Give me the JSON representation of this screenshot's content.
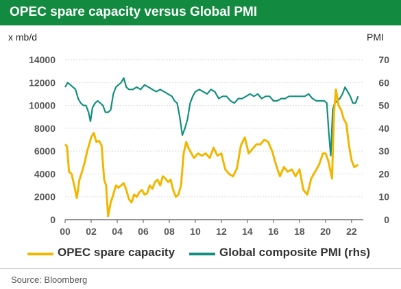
{
  "title": "OPEC spare capacity versus Global PMI",
  "left_unit": "x mb/d",
  "right_unit": "PMI",
  "source": "Source: Bloomberg",
  "colors": {
    "title_bg": "#128a3f",
    "opec": "#f2b600",
    "pmi": "#128f7e"
  },
  "chart_data": {
    "type": "line",
    "x_tick_labels": [
      "00",
      "02",
      "04",
      "06",
      "08",
      "10",
      "12",
      "14",
      "16",
      "18",
      "20",
      "22"
    ],
    "x_ticks": [
      2000,
      2002,
      2004,
      2006,
      2008,
      2010,
      2012,
      2014,
      2016,
      2018,
      2020,
      2022
    ],
    "xlim": [
      2000,
      2022.9
    ],
    "y_left": {
      "lim": [
        0,
        14000
      ],
      "ticks": [
        0,
        2000,
        4000,
        6000,
        8000,
        10000,
        12000,
        14000
      ]
    },
    "y_right": {
      "lim": [
        0,
        70
      ],
      "ticks": [
        0,
        10,
        20,
        30,
        40,
        50,
        60,
        70
      ]
    },
    "grid": "horizontal",
    "legend_position": "bottom",
    "series": [
      {
        "name": "OPEC spare capacity",
        "axis": "left",
        "x": [
          2000,
          2000.15,
          2000.3,
          2000.5,
          2000.7,
          2000.9,
          2001.1,
          2001.3,
          2001.5,
          2001.7,
          2001.9,
          2002.0,
          2002.2,
          2002.4,
          2002.6,
          2002.8,
          2003.0,
          2003.15,
          2003.3,
          2003.5,
          2003.7,
          2003.9,
          2004.1,
          2004.3,
          2004.5,
          2004.7,
          2004.9,
          2005.1,
          2005.3,
          2005.5,
          2005.7,
          2005.9,
          2006.1,
          2006.3,
          2006.5,
          2006.7,
          2006.9,
          2007.1,
          2007.3,
          2007.5,
          2007.7,
          2007.9,
          2008.1,
          2008.3,
          2008.5,
          2008.7,
          2008.9,
          2009.1,
          2009.3,
          2009.5,
          2009.7,
          2009.9,
          2010.2,
          2010.5,
          2010.8,
          2011.1,
          2011.4,
          2011.7,
          2012.0,
          2012.3,
          2012.6,
          2012.9,
          2013.2,
          2013.5,
          2013.8,
          2014.1,
          2014.4,
          2014.7,
          2015.0,
          2015.3,
          2015.6,
          2015.9,
          2016.2,
          2016.5,
          2016.8,
          2017.1,
          2017.4,
          2017.7,
          2018.0,
          2018.3,
          2018.6,
          2018.9,
          2019.2,
          2019.5,
          2019.8,
          2020.0,
          2020.2,
          2020.35,
          2020.5,
          2020.65,
          2020.8,
          2021.0,
          2021.2,
          2021.4,
          2021.6,
          2021.8,
          2022.0,
          2022.2,
          2022.5
        ],
        "y": [
          6600,
          6400,
          4200,
          4000,
          3000,
          1900,
          3500,
          4200,
          5000,
          6000,
          6800,
          7200,
          7600,
          6800,
          6900,
          6500,
          3500,
          3000,
          300,
          1500,
          2200,
          3000,
          2800,
          3000,
          3200,
          2600,
          1800,
          1500,
          2200,
          2000,
          2400,
          2600,
          2200,
          2300,
          3000,
          2700,
          3300,
          3500,
          3000,
          3800,
          3600,
          3300,
          3500,
          2600,
          2000,
          2200,
          3000,
          5800,
          6800,
          6200,
          5800,
          5400,
          5800,
          5600,
          5800,
          5400,
          6300,
          5600,
          5800,
          4400,
          4000,
          3800,
          4500,
          6500,
          7200,
          5800,
          6200,
          6600,
          6600,
          7000,
          6800,
          6000,
          4800,
          3800,
          4600,
          4200,
          4400,
          3800,
          4400,
          2600,
          2200,
          3600,
          4200,
          4800,
          5800,
          5800,
          5200,
          4400,
          3600,
          9400,
          11400,
          10000,
          9600,
          8800,
          8400,
          6500,
          5200,
          4600,
          4800
        ]
      },
      {
        "name": "Global composite PMI (rhs)",
        "axis": "right",
        "x": [
          2000,
          2000.2,
          2000.4,
          2000.6,
          2000.8,
          2001.0,
          2001.2,
          2001.4,
          2001.6,
          2001.8,
          2001.95,
          2002.1,
          2002.3,
          2002.5,
          2002.7,
          2002.9,
          2003.1,
          2003.3,
          2003.5,
          2003.7,
          2003.9,
          2004.1,
          2004.3,
          2004.5,
          2004.7,
          2004.9,
          2005.2,
          2005.5,
          2005.8,
          2006.1,
          2006.4,
          2006.7,
          2007.0,
          2007.3,
          2007.6,
          2007.9,
          2008.2,
          2008.4,
          2008.6,
          2008.8,
          2009.0,
          2009.2,
          2009.4,
          2009.6,
          2009.8,
          2010.0,
          2010.3,
          2010.6,
          2010.9,
          2011.2,
          2011.5,
          2011.8,
          2012.1,
          2012.4,
          2012.7,
          2013.0,
          2013.3,
          2013.6,
          2013.9,
          2014.2,
          2014.5,
          2014.8,
          2015.1,
          2015.4,
          2015.7,
          2016.0,
          2016.3,
          2016.6,
          2016.9,
          2017.2,
          2017.5,
          2017.8,
          2018.1,
          2018.4,
          2018.7,
          2019.0,
          2019.3,
          2019.6,
          2019.9,
          2020.1,
          2020.25,
          2020.4,
          2020.55,
          2020.7,
          2020.9,
          2021.1,
          2021.3,
          2021.5,
          2021.7,
          2021.9,
          2022.1,
          2022.3,
          2022.5
        ],
        "y": [
          58,
          60,
          59,
          58,
          57,
          53,
          51,
          50,
          50,
          47,
          43,
          49,
          51,
          52,
          51,
          50,
          47,
          47,
          48,
          55,
          58,
          59,
          60,
          62,
          58,
          57,
          57,
          58,
          57,
          59,
          58,
          57,
          56,
          57,
          56,
          55,
          54,
          52,
          51,
          45,
          37,
          40,
          44,
          51,
          54,
          56,
          57,
          56,
          55,
          57,
          56,
          53,
          54,
          54,
          52,
          51,
          53,
          53,
          54,
          55,
          54,
          55,
          53,
          54,
          54,
          52,
          52,
          53,
          53,
          54,
          54,
          54,
          54,
          54,
          55,
          53,
          52,
          52,
          52,
          51,
          38,
          28,
          48,
          51,
          52,
          53,
          55,
          58,
          56,
          54,
          51,
          51,
          54
        ]
      }
    ]
  }
}
